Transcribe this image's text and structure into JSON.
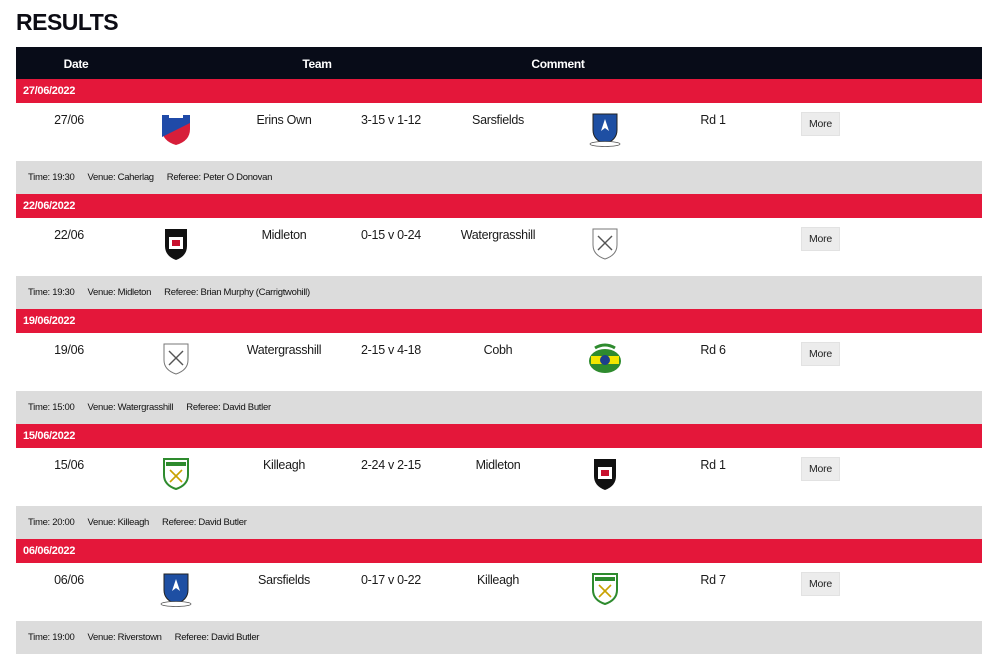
{
  "page": {
    "title": "RESULTS"
  },
  "headers": {
    "date": "Date",
    "team": "Team",
    "comment": "Comment"
  },
  "more_label": "More",
  "results": [
    {
      "date_full": "27/06/2022",
      "date_short": "27/06",
      "home": "Erins Own",
      "score": "3-15 v 1-12",
      "away": "Sarsfields",
      "home_crest": "erins-own-crest",
      "away_crest": "sarsfields-crest",
      "round": "Rd 1",
      "time": "Time: 19:30",
      "venue": "Venue: Caherlag",
      "referee": "Referee: Peter O Donovan"
    },
    {
      "date_full": "22/06/2022",
      "date_short": "22/06",
      "home": "Midleton",
      "score": "0-15 v 0-24",
      "away": "Watergrasshill",
      "home_crest": "midleton-crest",
      "away_crest": "watergrasshill-crest",
      "round": "",
      "time": "Time: 19:30",
      "venue": "Venue: Midleton",
      "referee": "Referee: Brian Murphy (Carrigtwohill)"
    },
    {
      "date_full": "19/06/2022",
      "date_short": "19/06",
      "home": "Watergrasshill",
      "score": "2-15 v 4-18",
      "away": "Cobh",
      "home_crest": "watergrasshill-crest",
      "away_crest": "cobh-crest",
      "round": "Rd 6",
      "time": "Time: 15:00",
      "venue": "Venue: Watergrasshill",
      "referee": "Referee: David Butler"
    },
    {
      "date_full": "15/06/2022",
      "date_short": "15/06",
      "home": "Killeagh",
      "score": "2-24 v 2-15",
      "away": "Midleton",
      "home_crest": "killeagh-crest",
      "away_crest": "midleton-crest",
      "round": "Rd 1",
      "time": "Time: 20:00",
      "venue": "Venue: Killeagh",
      "referee": "Referee: David Butler"
    },
    {
      "date_full": "06/06/2022",
      "date_short": "06/06",
      "home": "Sarsfields",
      "score": "0-17 v 0-22",
      "away": "Killeagh",
      "home_crest": "sarsfields-crest",
      "away_crest": "killeagh-crest",
      "round": "Rd 7",
      "time": "Time: 19:00",
      "venue": "Venue: Riverstown",
      "referee": "Referee: David Butler"
    }
  ],
  "colors": {
    "header_bg": "#080c18",
    "date_bar": "#e4173a",
    "info_bar": "#dcdcdc"
  }
}
